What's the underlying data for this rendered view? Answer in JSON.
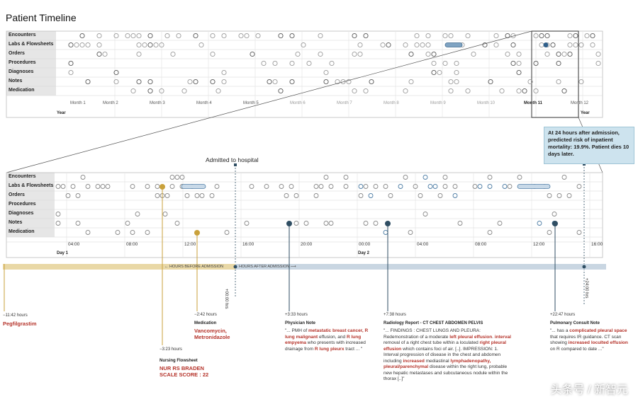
{
  "page_title": "Patient Timeline",
  "top_panel": {
    "rows": [
      "Encounters",
      "Labs & Flowsheets",
      "Orders",
      "Procedures",
      "Diagnoses",
      "Notes",
      "Medication"
    ],
    "months": [
      "Month 1",
      "Month 2",
      "Month 3",
      "Month 4",
      "Month 5",
      "Month 6",
      "Month 7",
      "Month 8",
      "Month 9",
      "Month 10",
      "Month 11",
      "Month 12"
    ],
    "year_labels": [
      "Year",
      "Year"
    ]
  },
  "zoom_panel": {
    "rows": [
      "Encounters",
      "Labs & Flowsheets",
      "Orders",
      "Procedures",
      "Diagnoses",
      "Notes",
      "Medication"
    ],
    "hours": [
      "04:00",
      "08:00",
      "12:00",
      "16:00",
      "20:00",
      "00:00",
      "04:00",
      "08:00",
      "12:00",
      "16:00"
    ],
    "day_labels": [
      "Day 1",
      "Day 2"
    ]
  },
  "admit_label": "Admitted to hospital",
  "callout": "At 24 hours after admission, predicted risk of inpatient mortality: 19.9%. Patient dies 10 days later.",
  "axis": {
    "before": "HOURS BEFORE ADMISSION",
    "after": "HOURS AFTER ADMISSION",
    "zero": "+00:00 hrs",
    "end": "+24:00 hrs",
    "before_color": "#e9d8a6",
    "after_color": "#c9d6e2"
  },
  "colors": {
    "gold": "#c9a13b",
    "navy": "#2f4e63",
    "red": "#b5332a"
  },
  "events": {
    "pegfilgrastim": {
      "time": "−11:42 hours",
      "title": "Pegfilgrastim"
    },
    "nursing": {
      "time": "−3:23 hours",
      "name": "Nursing Flowsheet",
      "title": "NUR RS BRADEN SCALE SCORE : 22"
    },
    "medication": {
      "time": "−2:42 hours",
      "name": "Medication",
      "title": "Vancomycin, Metronidazole"
    },
    "physician": {
      "time": "+3:33 hours",
      "name": "Physician Note",
      "t1": "\"... PMH of ",
      "h1": "metastatic breast cancer, R lung malignant",
      "t2": " effusion, and ",
      "h2": "R lung empyema",
      "t3": " who presents with increased drainage from ",
      "h3": "R lung pleurx",
      "t4": " tract ... \""
    },
    "radiology": {
      "time": "+7:38 hours",
      "name": "Radiology Report - CT CHEST ABDOMEN PELVIS",
      "t1": "\"... FINDINGS : CHEST LUNGS AND PLEURA: Redemonstration of a moderate ",
      "h1": "left pleural effusion",
      "t2": ". ",
      "h2": "interval",
      "t3": " removal of a right chest tube within a loculated ",
      "h3": "right pleural effusion",
      "t4": " which contains foci of air. [..]. IMPRESSION: 1. Interval progression of disease in the chest and abdomen including ",
      "h4": "increased",
      "t5": " mediastinal ",
      "h5": "lymphadenopathy, pleural/parenchymal",
      "t6": " disease within the right lung, probable new hepatic metastases and subcutaneous nodule within the thorax [..]\""
    },
    "pulmonary": {
      "time": "+22:47 hours",
      "name": "Pulmonary Consult Note",
      "t1": "\"... has a ",
      "h1": "complicated pleural space",
      "t2": " that requires IR guidance. CT scan showing ",
      "h2": "increased loculted effusion",
      "t3": " on R compared to date ...\""
    }
  },
  "watermark": "头条号 / 新智元"
}
